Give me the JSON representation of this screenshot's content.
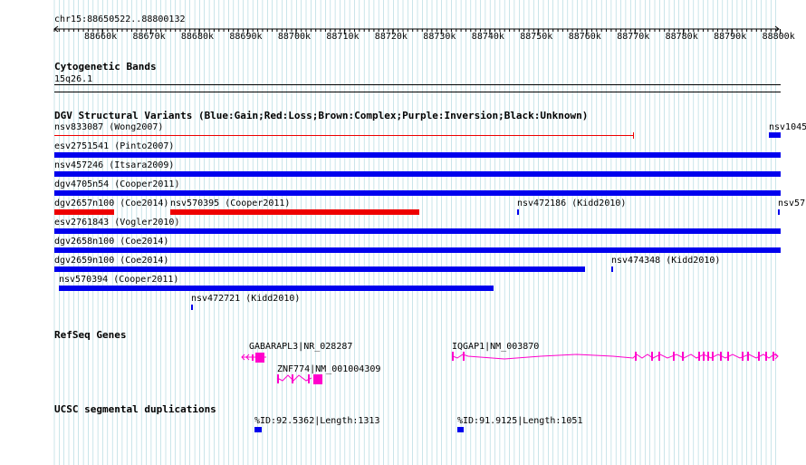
{
  "ruler": {
    "location": "chr15:88650522..88800132",
    "ticks": [
      "88660k",
      "88670k",
      "88680k",
      "88690k",
      "88700k",
      "88710k",
      "88720k",
      "88730k",
      "88740k",
      "88750k",
      "88760k",
      "88770k",
      "88780k",
      "88790k",
      "88800k"
    ]
  },
  "tracks": {
    "cytoband": {
      "title": "Cytogenetic Bands",
      "band": "15q26.1"
    },
    "dgv": {
      "title": "DGV Structural Variants (Blue:Gain;Red:Loss;Brown:Complex;Purple:Inversion;Black:Unknown)",
      "features": [
        {
          "label": "nsv833087 (Wong2007)"
        },
        {
          "label": "nsv1045"
        },
        {
          "label": "esv2751541 (Pinto2007)"
        },
        {
          "label": "nsv457246 (Itsara2009)"
        },
        {
          "label": "dgv4705n54 (Cooper2011)"
        },
        {
          "label": "dgv2657n100 (Coe2014)"
        },
        {
          "label": "nsv570395 (Cooper2011)"
        },
        {
          "label": "nsv472186 (Kidd2010)"
        },
        {
          "label": "nsv57"
        },
        {
          "label": "esv2761843 (Vogler2010)"
        },
        {
          "label": "dgv2658n100 (Coe2014)"
        },
        {
          "label": "dgv2659n100 (Coe2014)"
        },
        {
          "label": "nsv474348 (Kidd2010)"
        },
        {
          "label": "nsv570394 (Cooper2011)"
        },
        {
          "label": "nsv472721 (Kidd2010)"
        }
      ]
    },
    "refseq": {
      "title": "RefSeq Genes",
      "genes": [
        {
          "label": "GABARAPL3|NR_028287"
        },
        {
          "label": "IQGAP1|NM_003870"
        },
        {
          "label": "ZNF774|NM_001004309"
        }
      ]
    },
    "segdup": {
      "title": "UCSC segmental duplications",
      "features": [
        {
          "label": "%ID:92.5362|Length:1313"
        },
        {
          "label": "%ID:91.9125|Length:1051"
        }
      ]
    }
  },
  "colors": {
    "gain": "#0000ee",
    "loss": "#ee0000",
    "gene": "#ff00cc",
    "grid": "#a8d4dc"
  }
}
